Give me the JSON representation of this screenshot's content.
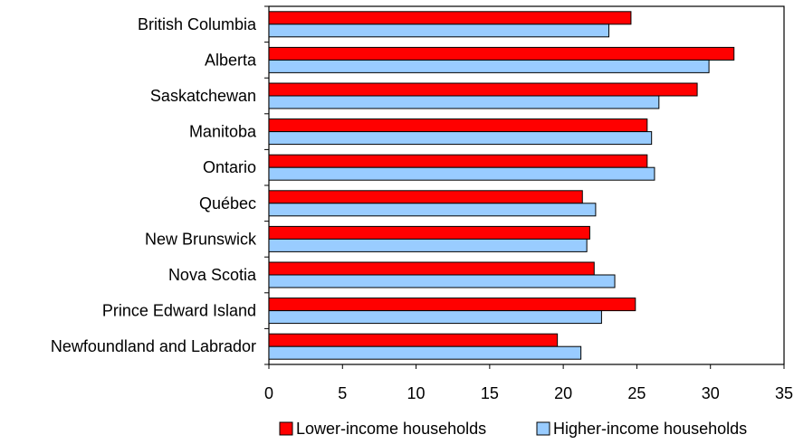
{
  "chart_data": {
    "type": "bar",
    "orientation": "horizontal",
    "categories": [
      "British Columbia",
      "Alberta",
      "Saskatchewan",
      "Manitoba",
      "Ontario",
      "Québec",
      "New Brunswick",
      "Nova Scotia",
      "Prince Edward Island",
      "Newfoundland and Labrador"
    ],
    "series": [
      {
        "name": "Lower-income households",
        "color": "#ff0000",
        "values": [
          24.6,
          31.6,
          29.1,
          25.7,
          25.7,
          21.3,
          21.8,
          22.1,
          24.9,
          19.6
        ]
      },
      {
        "name": "Higher-income households",
        "color": "#99ccff",
        "values": [
          23.1,
          29.9,
          26.5,
          26.0,
          26.2,
          22.2,
          21.6,
          23.5,
          22.6,
          21.2
        ]
      }
    ],
    "x_ticks": [
      "0",
      "5",
      "10",
      "15",
      "20",
      "25",
      "30",
      "35"
    ],
    "xlim": [
      0,
      35
    ],
    "grid": false,
    "legend_position": "bottom-right"
  }
}
